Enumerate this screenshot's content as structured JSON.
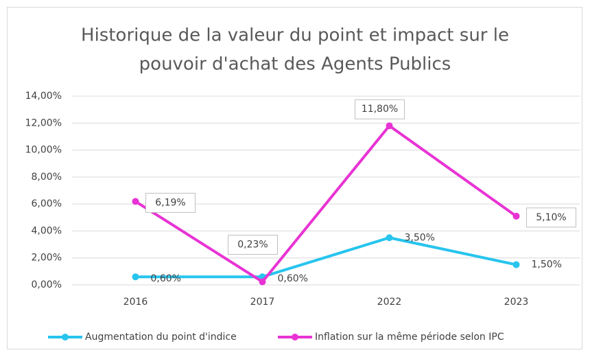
{
  "chart_data": {
    "type": "line",
    "title": [
      "Historique de la valeur du point et impact sur le",
      "pouvoir d'achat des Agents Publics"
    ],
    "categories": [
      "2016",
      "2017",
      "2022",
      "2023"
    ],
    "series": [
      {
        "name": "Augmentation du point d'indice",
        "color": "#27c4ee",
        "values": [
          0.6,
          0.6,
          3.5,
          1.5
        ],
        "value_labels": [
          "0,60%",
          "0,60%",
          "3,50%",
          "1,50%"
        ]
      },
      {
        "name": "Inflation sur la même période selon IPC",
        "color": "#e833d4",
        "values": [
          6.19,
          0.23,
          11.8,
          5.1
        ],
        "value_labels": [
          "6,19%",
          "0,23%",
          "11,80%",
          "5,10%"
        ]
      }
    ],
    "ylim": [
      0,
      14
    ],
    "yticks": [
      {
        "value": 0,
        "label": "0,00%"
      },
      {
        "value": 2,
        "label": "2,00%"
      },
      {
        "value": 4,
        "label": "4,00%"
      },
      {
        "value": 6,
        "label": "6,00%"
      },
      {
        "value": 8,
        "label": "8,00%"
      },
      {
        "value": 10,
        "label": "10,00%"
      },
      {
        "value": 12,
        "label": "12,00%"
      },
      {
        "value": 14,
        "label": "14,00%"
      }
    ],
    "grid": true,
    "legend": "bottom"
  }
}
